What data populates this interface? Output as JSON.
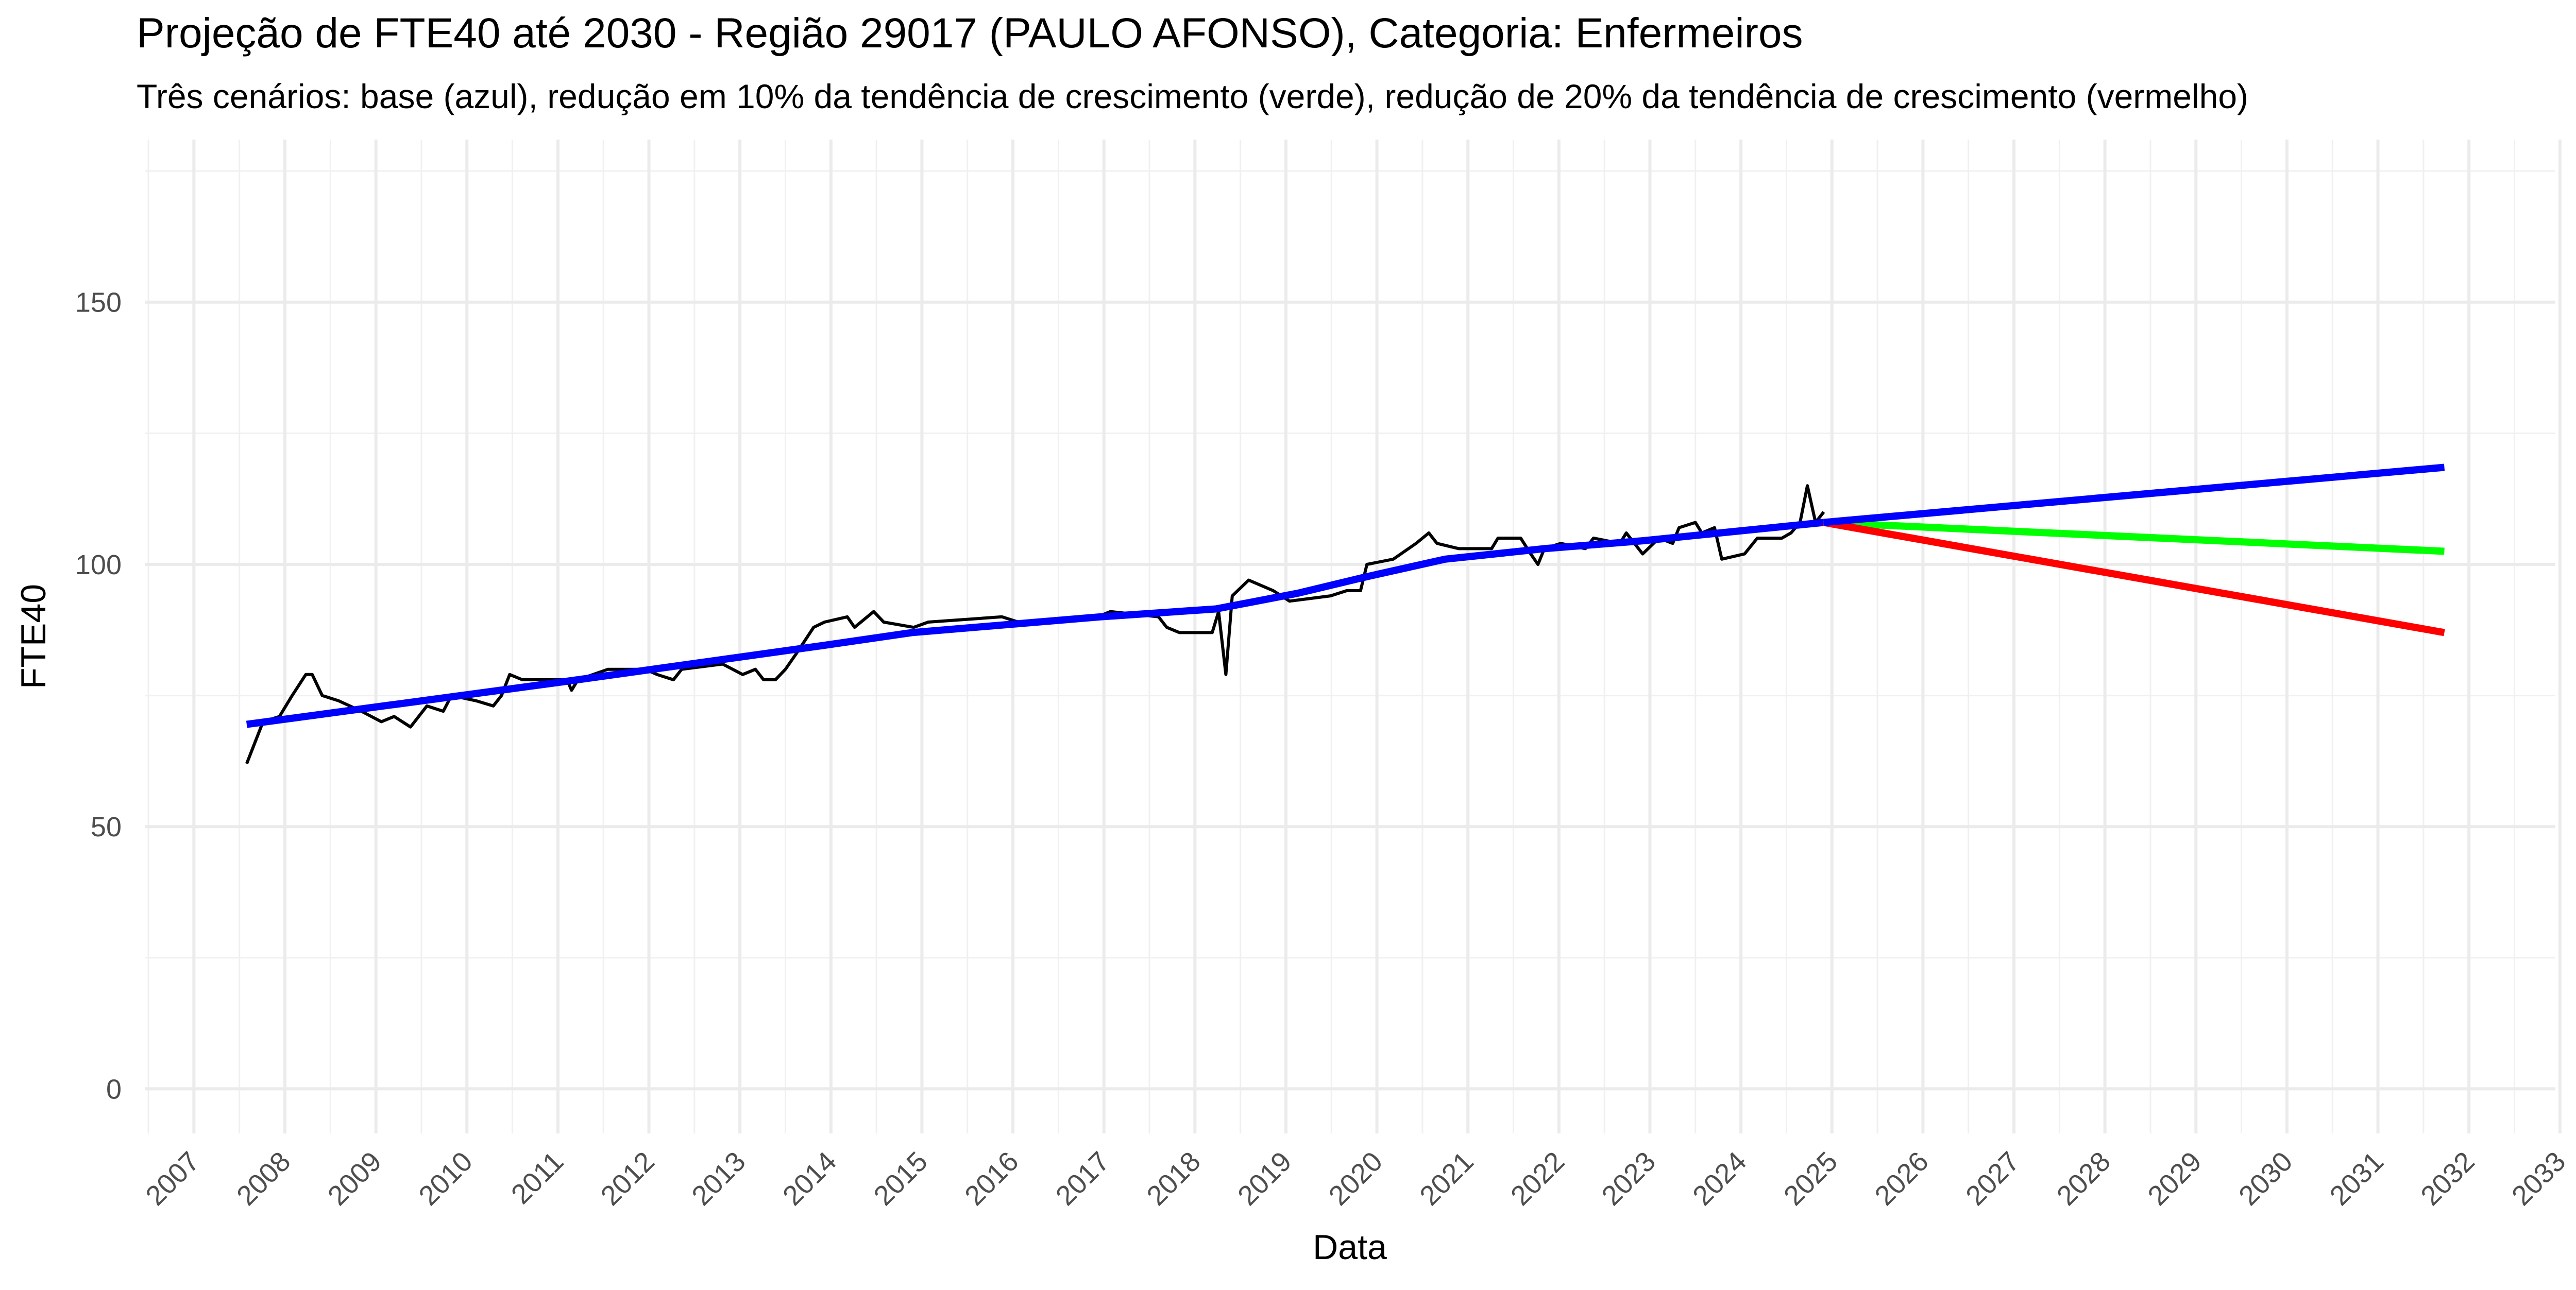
{
  "chart_data": {
    "type": "line",
    "title": "Projeção de FTE40 até 2030 - Região 29017 (PAULO AFONSO), Categoria: Enfermeiros",
    "subtitle": "Três cenários: base (azul), redução em 10% da tendência de crescimento (verde), redução de 20% da tendência de crescimento (vermelho)",
    "x_label": "Data",
    "y_label": "FTE40",
    "xlim": [
      2006.46,
      2032.95
    ],
    "ylim": [
      -8.5,
      181
    ],
    "xticks": [
      2007,
      2008,
      2009,
      2010,
      2011,
      2012,
      2013,
      2014,
      2015,
      2016,
      2017,
      2018,
      2019,
      2020,
      2021,
      2022,
      2023,
      2024,
      2025,
      2026,
      2027,
      2028,
      2029,
      2030,
      2031,
      2032,
      2033
    ],
    "yticks": [
      0,
      50,
      100,
      150
    ],
    "grid": true,
    "series": [
      {
        "color": "#000000",
        "x": [
          2007.58,
          2007.76,
          2007.94,
          2008.08,
          2008.23,
          2008.3,
          2008.41,
          2008.59,
          2008.84,
          2009.06,
          2009.2,
          2009.38,
          2009.56,
          2009.74,
          2009.83,
          2010.1,
          2010.29,
          2010.38,
          2010.47,
          2010.61,
          2011.1,
          2011.15,
          2011.22,
          2011.55,
          2011.96,
          2012.09,
          2012.27,
          2012.36,
          2012.81,
          2013.03,
          2013.17,
          2013.26,
          2013.39,
          2013.5,
          2013.62,
          2013.81,
          2013.93,
          2014.18,
          2014.26,
          2014.47,
          2014.58,
          2014.91,
          2015.07,
          2015.88,
          2016.06,
          2016.93,
          2017.07,
          2017.6,
          2017.69,
          2017.83,
          2018.19,
          2018.26,
          2018.34,
          2018.41,
          2018.59,
          2018.86,
          2019.04,
          2019.49,
          2019.67,
          2019.82,
          2019.89,
          2020.18,
          2020.43,
          2020.57,
          2020.66,
          2020.9,
          2021.26,
          2021.33,
          2021.58,
          2021.69,
          2021.77,
          2021.84,
          2022.02,
          2022.29,
          2022.38,
          2022.67,
          2022.74,
          2022.92,
          2023.1,
          2023.25,
          2023.32,
          2023.5,
          2023.57,
          2023.71,
          2023.79,
          2024.04,
          2024.18,
          2024.45,
          2024.55,
          2024.65,
          2024.73,
          2024.82,
          2024.91
        ],
        "values": [
          62,
          70,
          71,
          75,
          79,
          79,
          75,
          74,
          72,
          70,
          71,
          69,
          73,
          72,
          75,
          74,
          73,
          75,
          79,
          78,
          78,
          76,
          78,
          80,
          80,
          79,
          78,
          80,
          81,
          79,
          80,
          78,
          78,
          80,
          83,
          88,
          89,
          90,
          88,
          91,
          89,
          88,
          89,
          90,
          89,
          90,
          91,
          90,
          88,
          87,
          87,
          91,
          79,
          94,
          97,
          95,
          93,
          94,
          95,
          95,
          100,
          101,
          104,
          106,
          104,
          103,
          103,
          105,
          105,
          102,
          100,
          103,
          104,
          103,
          105,
          104,
          106,
          102,
          105,
          104,
          107,
          108,
          106,
          107,
          101,
          102,
          105,
          105,
          106,
          108,
          115,
          108,
          110
        ]
      },
      {
        "color": "#0000ff",
        "x": [
          2007.58,
          2011.01,
          2013.9,
          2014.89,
          2016.96,
          2018.23,
          2019.13,
          2019.85,
          2020.75,
          2021.84,
          2022.92,
          2024.91
        ],
        "values": [
          69.5,
          77.5,
          84.5,
          87,
          90,
          91.5,
          94.5,
          97.5,
          101,
          103,
          104.5,
          108
        ]
      },
      {
        "color": "#00ff00",
        "x": [
          2024.91,
          2031.73
        ],
        "values": [
          108,
          102.5
        ]
      },
      {
        "color": "#ff0000",
        "x": [
          2024.91,
          2031.73
        ],
        "values": [
          108,
          87
        ]
      },
      {
        "color": "#0000ff",
        "x": [
          2024.91,
          2031.73
        ],
        "values": [
          108,
          118.5
        ]
      }
    ]
  }
}
